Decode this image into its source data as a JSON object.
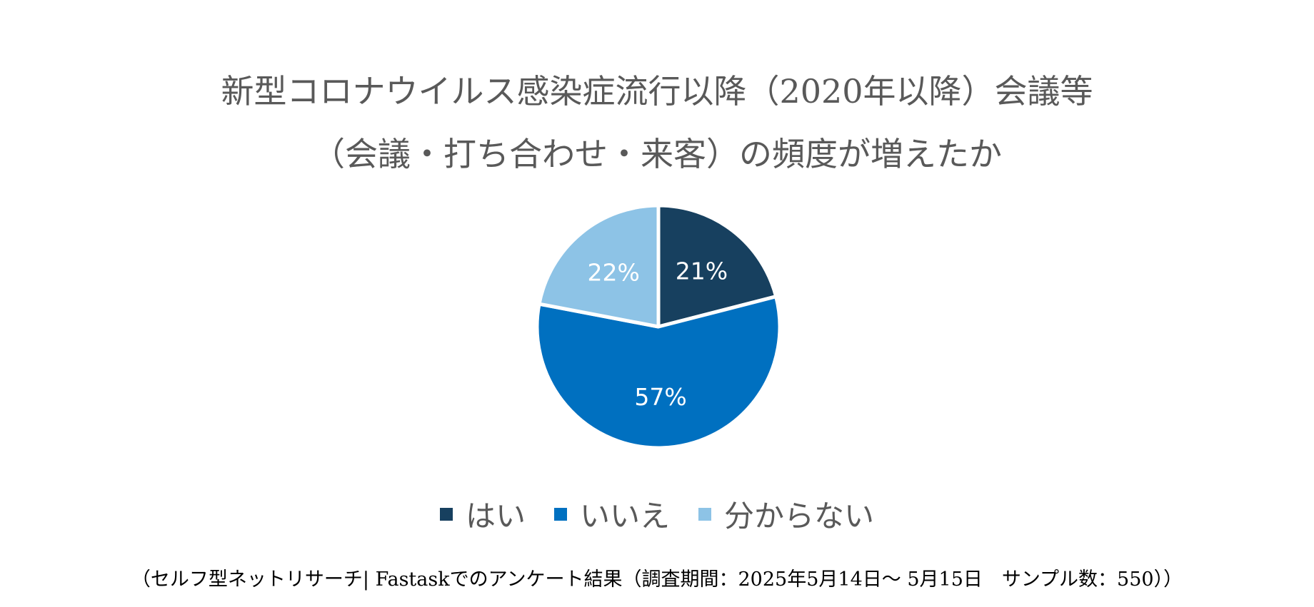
{
  "chart_data": {
    "type": "pie",
    "title": "新型コロナウイルス感染症流行以降（2020年以降）会議等（会議・打ち合わせ・来客）の頻度が増えたか",
    "title_lines": [
      "新型コロナウイルス感染症流行以降（2020年以降）会議等",
      "（会議・打ち合わせ・来客）の頻度が増えたか"
    ],
    "categories": [
      "はい",
      "いいえ",
      "分からない"
    ],
    "values": [
      21,
      57,
      22
    ],
    "labels": [
      "21%",
      "57%",
      "22%"
    ],
    "colors": [
      "#17405f",
      "#0070c0",
      "#8dc3e6"
    ],
    "legend": "bottom"
  },
  "footnote": "（セルフ型ネットリサーチ| Fastaskでのアンケート結果（調査期間：2025年5月14日～ 5月15日　サンプル数：550））"
}
